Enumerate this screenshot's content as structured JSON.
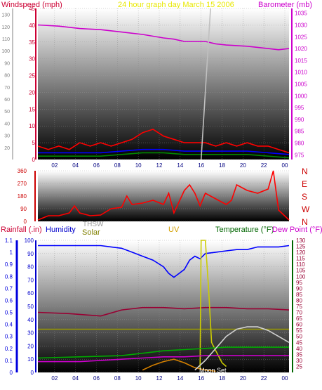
{
  "header": {
    "windspeed_label": "Windspeed (mph)",
    "graph_title": "24 hour graph day   March 15 2006",
    "barometer_label": "Barometer (mb)"
  },
  "second_header": {
    "rainfall_label": "Rainfall (.in)",
    "humidity_label": "Humidity",
    "thsw_label": "THSW",
    "solar_label": "Solar",
    "uv_label": "UV",
    "temperature_label": "Temperature (°F)",
    "dewpoint_label": "Dew Point (°F)"
  },
  "colors": {
    "wind_axis": "#cc0033",
    "title": "#e8e800",
    "barometer": "#cc00cc",
    "rain_axis": "#0000dd",
    "humidity": "#0000cc",
    "uv": "#d4a000",
    "temperature": "#006600",
    "dew_point": "#cc00cc",
    "temp_axis": "#990033",
    "direction": "#cc0000",
    "plot_bg_top": "#ffffff",
    "plot_bg_bottom": "#000000"
  },
  "annotations": {
    "moon_set": "Moon Set"
  },
  "chart_data": [
    {
      "type": "line",
      "panel": "wind-barometer",
      "x_ticks": [
        "02",
        "04",
        "06",
        "08",
        "10",
        "12",
        "14",
        "16",
        "18",
        "20",
        "22",
        "00"
      ],
      "xlim": [
        0,
        24
      ],
      "y_left": {
        "label": "Windspeed (mph)",
        "ticks": [
          0,
          5,
          10,
          15,
          20,
          25,
          30,
          35,
          40,
          45
        ],
        "ylim": [
          0,
          45
        ]
      },
      "y_right": {
        "label": "Barometer (mb)",
        "ticks": [
          975,
          980,
          985,
          990,
          995,
          1000,
          1005,
          1010,
          1015,
          1020,
          1025,
          1030,
          1035
        ],
        "ylim": [
          973,
          1037
        ]
      },
      "extra_left_ticks": [
        20,
        30,
        40,
        50,
        60,
        70,
        80,
        90,
        100,
        110,
        120,
        130
      ],
      "series": [
        {
          "name": "Barometer (mb)",
          "axis": "right",
          "color": "#cc00cc",
          "x": [
            0,
            2,
            4,
            6,
            8,
            10,
            12,
            13,
            14,
            15,
            16,
            17,
            18,
            20,
            22,
            23,
            24
          ],
          "y": [
            1030,
            1029.5,
            1028.5,
            1028,
            1027,
            1026,
            1024.5,
            1024,
            1023,
            1023,
            1023,
            1022,
            1021.5,
            1021,
            1020,
            1019.5,
            1020
          ]
        },
        {
          "name": "Wind gust",
          "axis": "left",
          "color": "#ff0000",
          "x": [
            0,
            1,
            2,
            3,
            4,
            5,
            6,
            7,
            8,
            9,
            10,
            11,
            12,
            13,
            14,
            15,
            16,
            17,
            18,
            19,
            20,
            21,
            22,
            23,
            24
          ],
          "y": [
            4,
            3,
            4,
            3,
            5,
            4,
            5,
            4,
            5,
            6,
            8,
            9,
            7,
            6,
            5,
            5,
            5,
            4,
            5,
            4,
            5,
            4,
            4,
            3,
            2
          ]
        },
        {
          "name": "Wind avg",
          "axis": "left",
          "color": "#0000ff",
          "x": [
            0,
            2,
            4,
            6,
            8,
            10,
            12,
            14,
            16,
            18,
            20,
            22,
            24
          ],
          "y": [
            2,
            2,
            2,
            2,
            2.5,
            3,
            3,
            2.5,
            2.5,
            2.5,
            2.5,
            2,
            1.5
          ]
        },
        {
          "name": "Wind low",
          "axis": "left",
          "color": "#008800",
          "x": [
            0,
            2,
            4,
            6,
            8,
            10,
            12,
            14,
            16,
            18,
            20,
            22,
            24
          ],
          "y": [
            1,
            1,
            1,
            1,
            1.5,
            2,
            2,
            1.5,
            1.5,
            1.5,
            1.5,
            1,
            0.5
          ]
        },
        {
          "name": "",
          "axis": "left",
          "color": "#c0c0c0",
          "x": [
            15.6,
            16.5
          ],
          "y": [
            0,
            45
          ]
        }
      ]
    },
    {
      "type": "line",
      "panel": "wind-direction",
      "x_ticks": [],
      "xlim": [
        0,
        24
      ],
      "y_left": {
        "ticks": [
          0,
          90,
          180,
          270,
          360
        ],
        "ylim": [
          0,
          360
        ]
      },
      "y_right": {
        "ticks": [
          "N",
          "W",
          "S",
          "E",
          "N"
        ]
      },
      "series": [
        {
          "name": "Wind direction",
          "color": "#ff0000",
          "x": [
            0,
            0.5,
            1,
            2,
            3,
            3.5,
            4,
            5,
            6,
            7,
            8,
            8.5,
            9,
            10,
            11,
            12,
            12.5,
            13,
            14,
            14.5,
            15,
            15.5,
            16,
            17,
            18,
            18.5,
            19,
            20,
            21,
            22,
            22.5,
            23,
            24
          ],
          "y": [
            10,
            25,
            40,
            40,
            60,
            110,
            60,
            40,
            45,
            90,
            100,
            180,
            120,
            130,
            150,
            120,
            200,
            60,
            220,
            260,
            200,
            110,
            200,
            160,
            120,
            150,
            260,
            220,
            200,
            230,
            360,
            80,
            10
          ]
        }
      ]
    },
    {
      "type": "line",
      "panel": "rain-humidity-temperature",
      "x_ticks": [
        "02",
        "04",
        "06",
        "08",
        "10",
        "12",
        "14",
        "16",
        "18",
        "20",
        "22",
        "00"
      ],
      "xlim": [
        0,
        24
      ],
      "y_left_inner": {
        "label": "Humidity",
        "ticks": [
          0,
          10,
          20,
          30,
          40,
          50,
          60,
          70,
          80,
          90,
          100
        ],
        "ylim": [
          0,
          100
        ]
      },
      "y_left_outer": {
        "label": "Rainfall (.in)",
        "ticks": [
          0,
          0.1,
          0.2,
          0.3,
          0.4,
          0.5,
          0.6,
          0.7,
          0.8,
          0.9,
          1,
          1.1
        ],
        "ylim": [
          0,
          1.1
        ]
      },
      "y_right": {
        "label": "Temperature (°F)",
        "ticks": [
          25,
          30,
          35,
          40,
          45,
          50,
          55,
          60,
          65,
          70,
          75,
          80,
          85,
          90,
          95,
          100,
          105,
          110,
          115,
          120,
          125,
          130
        ],
        "ylim": [
          20,
          130
        ]
      },
      "series": [
        {
          "name": "Humidity",
          "axis": "humidity",
          "color": "#0000ff",
          "x": [
            0,
            2,
            4,
            5,
            6,
            7,
            8,
            9,
            10,
            11,
            12,
            12.5,
            13,
            13.5,
            14,
            14.5,
            15,
            15.5,
            16,
            17,
            18,
            19,
            20,
            21,
            22,
            23,
            24
          ],
          "y": [
            96,
            96,
            96,
            96,
            96,
            95,
            94,
            91,
            88,
            85,
            80,
            75,
            72,
            75,
            78,
            85,
            88,
            86,
            90,
            91,
            92,
            93,
            93,
            95,
            95,
            95,
            96
          ]
        },
        {
          "name": "Temperature (°F)",
          "axis": "right",
          "color": "#990033",
          "x": [
            0,
            3,
            6,
            8,
            10,
            12,
            14,
            16,
            18,
            20,
            22,
            24
          ],
          "y": [
            70,
            69,
            67,
            72,
            74,
            74,
            73,
            74,
            74,
            73,
            73,
            72
          ]
        },
        {
          "name": "THSW",
          "axis": "right",
          "color": "#999900",
          "x": [
            0,
            24
          ],
          "y": [
            56,
            56
          ]
        },
        {
          "name": "Solar",
          "axis": "right",
          "color": "#cccc00",
          "x": [
            15.5,
            15.6,
            16,
            16.3,
            16.6,
            17,
            17.3,
            17.6,
            18
          ],
          "y": [
            24,
            130,
            130,
            92,
            45,
            38,
            33,
            28,
            25
          ]
        },
        {
          "name": "Dew Point (°F)",
          "axis": "right",
          "color": "#cc00cc",
          "x": [
            0,
            2,
            4,
            6,
            8,
            10,
            12,
            14,
            16,
            18,
            20,
            22,
            24
          ],
          "y": [
            29,
            29,
            29,
            30,
            31,
            32,
            33,
            33,
            34,
            34,
            34,
            34,
            34
          ]
        },
        {
          "name": "",
          "axis": "right",
          "color": "#00aa00",
          "x": [
            0,
            4,
            8,
            10,
            12,
            14,
            16,
            18,
            20,
            22,
            24
          ],
          "y": [
            32,
            33,
            34,
            36,
            38,
            39,
            40,
            41,
            41,
            41,
            41
          ]
        },
        {
          "name": "",
          "axis": "right",
          "color": "#d48000",
          "x": [
            10,
            11,
            12,
            13,
            14,
            15,
            16,
            17
          ],
          "y": [
            22,
            26,
            29,
            31,
            28,
            24,
            22,
            21
          ]
        },
        {
          "name": "",
          "axis": "right",
          "color": "#d0d0d0",
          "x": [
            15,
            16,
            17,
            18,
            19,
            20,
            21,
            22,
            23,
            24
          ],
          "y": [
            22,
            30,
            40,
            50,
            56,
            58,
            58,
            55,
            50,
            45
          ]
        }
      ]
    }
  ]
}
